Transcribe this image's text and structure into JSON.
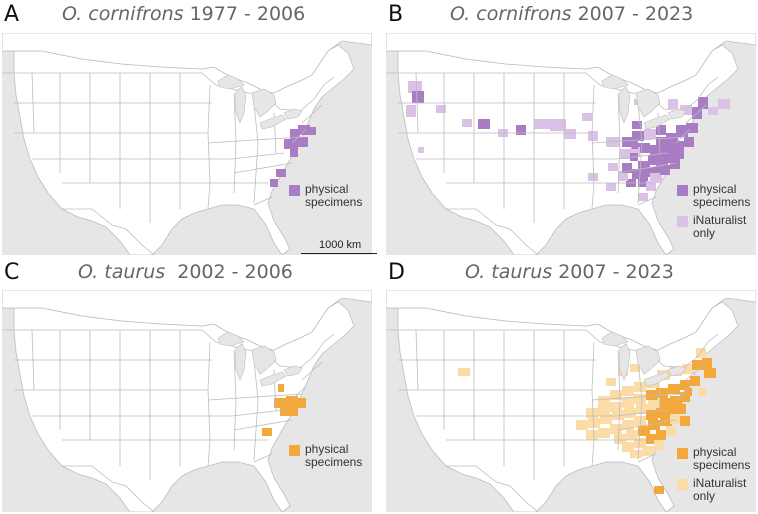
{
  "colors": {
    "ocean": "#e6e6e6",
    "land": "#ffffff",
    "lakes": "#e6e6e6",
    "border": "#bdbdbd",
    "cornifrons_physical": "#a97dc4",
    "cornifrons_inat": "#d9c2e6",
    "taurus_physical": "#f3a83b",
    "taurus_inat": "#fbdca6"
  },
  "scale_bar": {
    "label": "1000 km"
  },
  "panels": [
    {
      "letter": "A",
      "species": "O. cornifrons",
      "years": "1977 - 2006",
      "legend": [
        {
          "label": [
            "physical",
            "specimens"
          ],
          "color": "#a97dc4"
        }
      ]
    },
    {
      "letter": "B",
      "species": "O. cornifrons",
      "years": "2007 - 2023",
      "legend": [
        {
          "label": [
            "physical",
            "specimens"
          ],
          "color": "#a97dc4"
        },
        {
          "label": [
            "iNaturalist",
            "only"
          ],
          "color": "#d9c2e6"
        }
      ]
    },
    {
      "letter": "C",
      "species": "O. taurus",
      "years": "2002 - 2006",
      "legend": [
        {
          "label": [
            "physical",
            "specimens"
          ],
          "color": "#f3a83b"
        }
      ]
    },
    {
      "letter": "D",
      "species": "O. taurus",
      "years": "2007 - 2023",
      "legend": [
        {
          "label": [
            "physical",
            "specimens"
          ],
          "color": "#f3a83b"
        },
        {
          "label": [
            "iNaturalist",
            "only"
          ],
          "color": "#fbdca6"
        }
      ]
    }
  ]
}
